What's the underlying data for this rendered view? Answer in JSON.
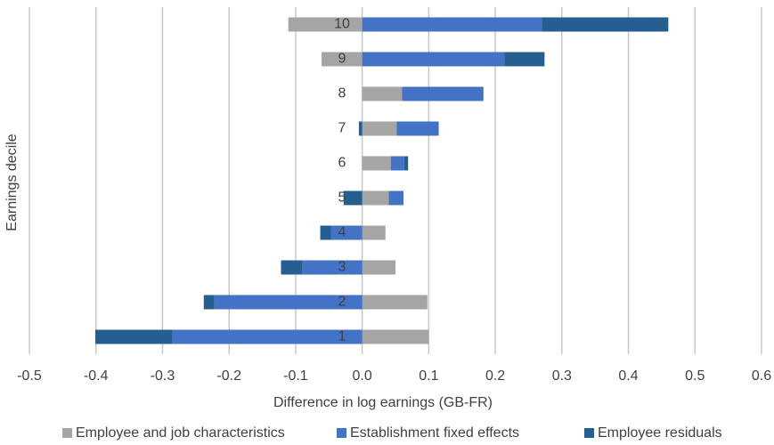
{
  "chart_data": {
    "type": "diverging-stacked-hbar",
    "x_label": "Difference in log earnings (GB-FR)",
    "y_label": "Earnings decile",
    "categories": [
      "1",
      "2",
      "3",
      "4",
      "5",
      "6",
      "7",
      "8",
      "9",
      "10"
    ],
    "series": [
      {
        "name": "Employee and job characteristics",
        "color": "#a5a5a5",
        "values": [
          0.1,
          0.098,
          0.05,
          0.035,
          0.04,
          0.043,
          0.052,
          0.06,
          -0.061,
          -0.111
        ]
      },
      {
        "name": "Establishment fixed effects",
        "color": "#4472c4",
        "values": [
          -0.285,
          -0.222,
          -0.09,
          -0.047,
          0.022,
          0.02,
          0.063,
          0.12,
          0.214,
          0.27
        ]
      },
      {
        "name": "Employee residuals",
        "color": "#255e91",
        "values": [
          -0.116,
          -0.016,
          -0.032,
          -0.016,
          -0.028,
          0.006,
          -0.005,
          0.002,
          0.06,
          0.19
        ]
      }
    ],
    "xlim": [
      -0.5,
      0.6
    ],
    "xticks": [
      -0.5,
      -0.4,
      -0.3,
      -0.2,
      -0.1,
      {
        "value": 0,
        "label": "0.0"
      },
      0.1,
      0.2,
      0.3,
      0.4,
      0.5,
      0.6
    ],
    "grid": true,
    "legend": "bottom"
  }
}
